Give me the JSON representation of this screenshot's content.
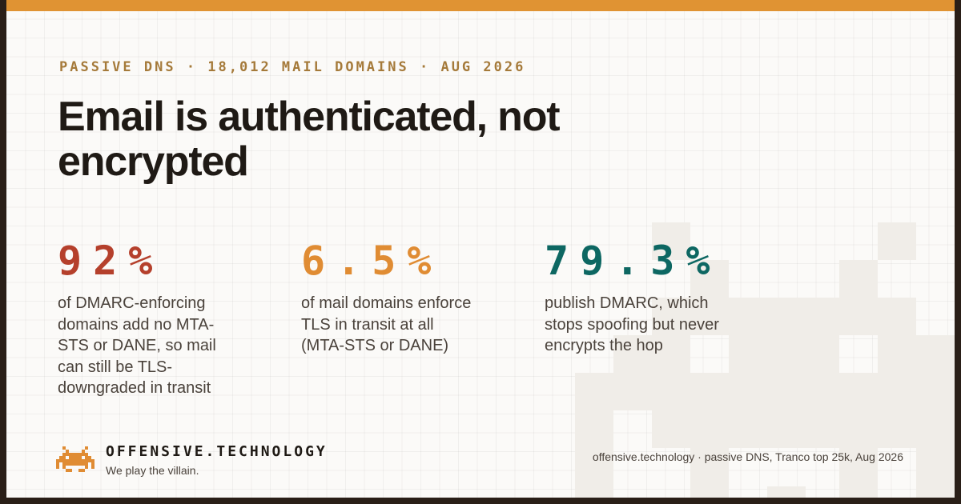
{
  "kicker": "PASSIVE DNS · 18,012 MAIL DOMAINS · AUG 2026",
  "title": "Email is authenticated, not encrypted",
  "stats": [
    {
      "value": "92%",
      "description": "of DMARC-enforcing domains add no MTA-STS or DANE, so mail can still be TLS-downgraded in transit",
      "color": "#b5402c"
    },
    {
      "value": "6.5%",
      "description": "of mail domains enforce TLS in transit at all (MTA-STS or DANE)",
      "color": "#e08c33"
    },
    {
      "value": "79.3%",
      "description": "publish DMARC, which stops spoofing but never encrypts the hop",
      "color": "#0d6762"
    }
  ],
  "brand": {
    "name": "OFFENSIVE.TECHNOLOGY",
    "tagline": "We play the villain.",
    "icon": "space-invader-icon"
  },
  "source": "offensive.technology · passive DNS, Tranco top 25k, Aug 2026",
  "colors": {
    "accent_bar": "#e09333",
    "background": "#fbfaf8",
    "frame": "#2a1f18",
    "text": "#1f1a15"
  }
}
